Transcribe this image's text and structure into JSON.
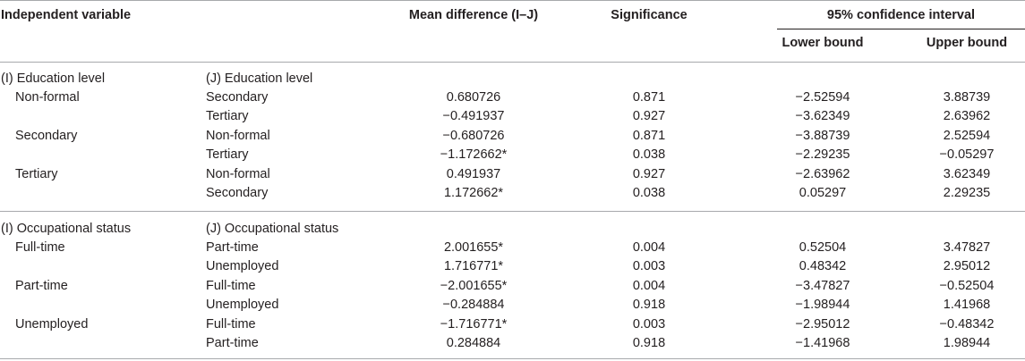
{
  "headers": {
    "independent_variable": "Independent variable",
    "mean_difference": "Mean difference (I–J)",
    "significance": "Significance",
    "ci": "95% confidence interval",
    "lower_bound": "Lower bound",
    "upper_bound": "Upper bound"
  },
  "education": {
    "i_label": "(I) Education level",
    "j_label": "(J) Education level",
    "rows": [
      {
        "i": "Non-formal",
        "j": "Secondary",
        "md": "0.680726",
        "sig": "0.871",
        "lb": "−2.52594",
        "ub": "3.88739"
      },
      {
        "i": "",
        "j": "Tertiary",
        "md": "−0.491937",
        "sig": "0.927",
        "lb": "−3.62349",
        "ub": "2.63962"
      },
      {
        "i": "Secondary",
        "j": "Non-formal",
        "md": "−0.680726",
        "sig": "0.871",
        "lb": "−3.88739",
        "ub": "2.52594"
      },
      {
        "i": "",
        "j": "Tertiary",
        "md": "−1.172662*",
        "sig": "0.038",
        "lb": "−2.29235",
        "ub": "−0.05297"
      },
      {
        "i": "Tertiary",
        "j": "Non-formal",
        "md": "0.491937",
        "sig": "0.927",
        "lb": "−2.63962",
        "ub": "3.62349"
      },
      {
        "i": "",
        "j": "Secondary",
        "md": "1.172662*",
        "sig": "0.038",
        "lb": "0.05297",
        "ub": "2.29235"
      }
    ]
  },
  "occupation": {
    "i_label": "(I) Occupational status",
    "j_label": "(J) Occupational status",
    "rows": [
      {
        "i": "Full-time",
        "j": "Part-time",
        "md": "2.001655*",
        "sig": "0.004",
        "lb": "0.52504",
        "ub": "3.47827"
      },
      {
        "i": "",
        "j": "Unemployed",
        "md": "1.716771*",
        "sig": "0.003",
        "lb": "0.48342",
        "ub": "2.95012"
      },
      {
        "i": "Part-time",
        "j": "Full-time",
        "md": "−2.001655*",
        "sig": "0.004",
        "lb": "−3.47827",
        "ub": "−0.52504"
      },
      {
        "i": "",
        "j": "Unemployed",
        "md": "−0.284884",
        "sig": "0.918",
        "lb": "−1.98944",
        "ub": "1.41968"
      },
      {
        "i": "Unemployed",
        "j": "Full-time",
        "md": "−1.716771*",
        "sig": "0.003",
        "lb": "−2.95012",
        "ub": "−0.48342"
      },
      {
        "i": "",
        "j": "Part-time",
        "md": "0.284884",
        "sig": "0.918",
        "lb": "−1.41968",
        "ub": "1.98944"
      }
    ]
  }
}
